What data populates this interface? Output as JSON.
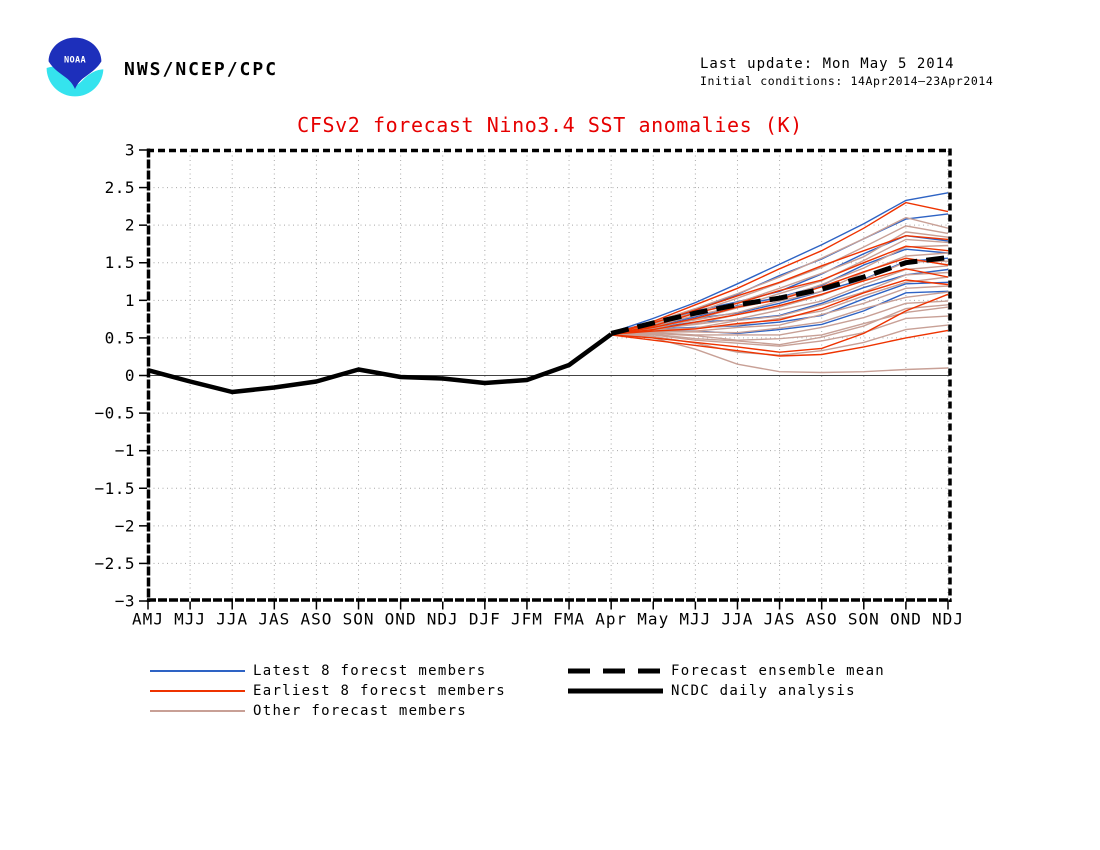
{
  "header": {
    "logo_text": "NOAA",
    "agency": "NWS/NCEP/CPC",
    "last_update": "Last update: Mon May 5 2014",
    "initial_conditions": "Initial conditions: 14Apr2014—23Apr2014"
  },
  "title": "CFSv2 forecast Nino3.4 SST anomalies (K)",
  "colors": {
    "title": "#e60000",
    "latest8": "#2e63c4",
    "earliest8": "#ee3300",
    "others": "#c8a096",
    "mean": "#000000",
    "observed": "#000000",
    "grid": "#a8a8a8",
    "zero_line": "#444444"
  },
  "legend": {
    "left": [
      {
        "label": "Latest 8 forecst members",
        "color": "#2e63c4",
        "style": "solid",
        "weight": 2
      },
      {
        "label": "Earliest 8 forecst members",
        "color": "#ee3300",
        "style": "solid",
        "weight": 2
      },
      {
        "label": "Other forecast members",
        "color": "#c8a096",
        "style": "solid",
        "weight": 2
      }
    ],
    "right": [
      {
        "label": "Forecast ensemble mean",
        "color": "#000000",
        "style": "dashed",
        "weight": 5
      },
      {
        "label": "NCDC daily analysis",
        "color": "#000000",
        "style": "solid",
        "weight": 5
      }
    ]
  },
  "chart_data": {
    "type": "line",
    "title": "CFSv2 forecast Nino3.4 SST anomalies (K)",
    "xlabel": "",
    "ylabel": "",
    "ylim": [
      -3,
      3
    ],
    "grid": "dotted",
    "x_ticklabels": [
      "AMJ",
      "MJJ",
      "JJA",
      "JAS",
      "ASO",
      "SON",
      "OND",
      "NDJ",
      "DJF",
      "JFM",
      "FMA",
      "Apr",
      "May",
      "MJJ",
      "JJA",
      "JAS",
      "ASO",
      "SON",
      "OND",
      "NDJ"
    ],
    "y_tickvalues": [
      3,
      2.5,
      2,
      1.5,
      1,
      0.5,
      0,
      -0.5,
      -1,
      -1.5,
      -2,
      -2.5,
      -3
    ],
    "y_ticklabels": [
      "3",
      "2.5",
      "2",
      "1.5",
      "1",
      "0.5",
      "0",
      "−0.5",
      "−1",
      "−1.5",
      "−2",
      "−2.5",
      "−3"
    ],
    "grid_y": [
      2.5,
      2,
      1.5,
      1,
      0.5,
      -0.5,
      -1,
      -1.5,
      -2,
      -2.5
    ],
    "forecast_start_index": 11,
    "observed": {
      "name": "NCDC daily analysis",
      "start_index": 0,
      "values": [
        0.07,
        -0.08,
        -0.22,
        -0.16,
        -0.08,
        0.08,
        -0.02,
        -0.04,
        -0.1,
        -0.06,
        0.14,
        0.55
      ]
    },
    "ensemble_mean": {
      "name": "Forecast ensemble mean",
      "start_index": 11,
      "values": [
        0.56,
        0.7,
        0.83,
        0.94,
        1.03,
        1.15,
        1.31,
        1.5,
        1.57
      ]
    },
    "members": [
      {
        "group": "latest8",
        "name": "Latest 8 forecst members",
        "color": "#2e63c4",
        "start_index": 11,
        "series": [
          [
            0.57,
            0.76,
            0.97,
            1.22,
            1.48,
            1.74,
            2.02,
            2.33,
            2.43
          ],
          [
            0.57,
            0.71,
            0.88,
            1.08,
            1.33,
            1.55,
            1.82,
            2.08,
            2.15
          ],
          [
            0.57,
            0.7,
            0.86,
            0.98,
            1.12,
            1.35,
            1.62,
            1.86,
            1.79
          ],
          [
            0.56,
            0.67,
            0.78,
            0.93,
            1.04,
            1.2,
            1.47,
            1.68,
            1.63
          ],
          [
            0.56,
            0.66,
            0.76,
            0.83,
            0.96,
            1.12,
            1.28,
            1.52,
            1.56
          ],
          [
            0.56,
            0.63,
            0.71,
            0.74,
            0.8,
            0.96,
            1.17,
            1.34,
            1.41
          ],
          [
            0.56,
            0.62,
            0.64,
            0.66,
            0.71,
            0.8,
            1.02,
            1.22,
            1.24
          ],
          [
            0.56,
            0.6,
            0.59,
            0.56,
            0.61,
            0.68,
            0.86,
            1.1,
            1.12
          ]
        ]
      },
      {
        "group": "earliest8",
        "name": "Earliest 8 forecst members",
        "color": "#ee3300",
        "start_index": 11,
        "series": [
          [
            0.55,
            0.72,
            0.94,
            1.16,
            1.42,
            1.66,
            1.96,
            2.3,
            2.18
          ],
          [
            0.55,
            0.7,
            0.87,
            1.06,
            1.24,
            1.46,
            1.66,
            1.86,
            1.81
          ],
          [
            0.55,
            0.66,
            0.83,
            0.96,
            1.13,
            1.27,
            1.5,
            1.72,
            1.66
          ],
          [
            0.55,
            0.64,
            0.76,
            0.91,
            1.01,
            1.18,
            1.38,
            1.56,
            1.47
          ],
          [
            0.55,
            0.61,
            0.71,
            0.81,
            0.93,
            1.08,
            1.26,
            1.42,
            1.31
          ],
          [
            0.55,
            0.59,
            0.62,
            0.69,
            0.74,
            0.89,
            1.1,
            1.27,
            1.21
          ],
          [
            0.54,
            0.5,
            0.44,
            0.38,
            0.31,
            0.36,
            0.56,
            0.86,
            1.08
          ],
          [
            0.54,
            0.47,
            0.4,
            0.33,
            0.26,
            0.28,
            0.38,
            0.5,
            0.6
          ]
        ]
      },
      {
        "group": "others",
        "name": "Other forecast members",
        "color": "#c8a096",
        "start_index": 11,
        "series": [
          [
            0.56,
            0.71,
            0.89,
            1.09,
            1.31,
            1.56,
            1.82,
            2.1,
            1.96
          ],
          [
            0.56,
            0.69,
            0.84,
            1.03,
            1.23,
            1.44,
            1.71,
            1.99,
            1.89
          ],
          [
            0.56,
            0.68,
            0.83,
            0.97,
            1.16,
            1.36,
            1.58,
            1.91,
            1.84
          ],
          [
            0.56,
            0.66,
            0.8,
            0.92,
            1.09,
            1.26,
            1.53,
            1.81,
            1.77
          ],
          [
            0.56,
            0.65,
            0.75,
            0.9,
            1.02,
            1.21,
            1.43,
            1.71,
            1.73
          ],
          [
            0.56,
            0.64,
            0.74,
            0.84,
            0.99,
            1.12,
            1.37,
            1.59,
            1.63
          ],
          [
            0.56,
            0.63,
            0.69,
            0.81,
            0.91,
            1.07,
            1.27,
            1.51,
            1.52
          ],
          [
            0.56,
            0.62,
            0.68,
            0.75,
            0.87,
            0.99,
            1.21,
            1.41,
            1.46
          ],
          [
            0.56,
            0.61,
            0.63,
            0.73,
            0.79,
            0.94,
            1.11,
            1.34,
            1.37
          ],
          [
            0.56,
            0.6,
            0.63,
            0.67,
            0.76,
            0.86,
            1.06,
            1.24,
            1.31
          ],
          [
            0.56,
            0.59,
            0.59,
            0.64,
            0.67,
            0.81,
            0.96,
            1.16,
            1.19
          ],
          [
            0.56,
            0.58,
            0.58,
            0.57,
            0.63,
            0.71,
            0.89,
            1.04,
            1.11
          ],
          [
            0.56,
            0.57,
            0.54,
            0.54,
            0.54,
            0.64,
            0.77,
            0.96,
            0.99
          ],
          [
            0.56,
            0.56,
            0.53,
            0.47,
            0.49,
            0.54,
            0.69,
            0.84,
            0.91
          ],
          [
            0.55,
            0.54,
            0.47,
            0.43,
            0.39,
            0.46,
            0.57,
            0.76,
            0.79
          ],
          [
            0.55,
            0.52,
            0.43,
            0.31,
            0.27,
            0.33,
            0.44,
            0.61,
            0.67
          ],
          [
            0.55,
            0.5,
            0.35,
            0.15,
            0.05,
            0.04,
            0.05,
            0.08,
            0.1
          ],
          [
            0.55,
            0.55,
            0.49,
            0.46,
            0.41,
            0.51,
            0.66,
            0.89,
            0.94
          ]
        ]
      }
    ]
  }
}
